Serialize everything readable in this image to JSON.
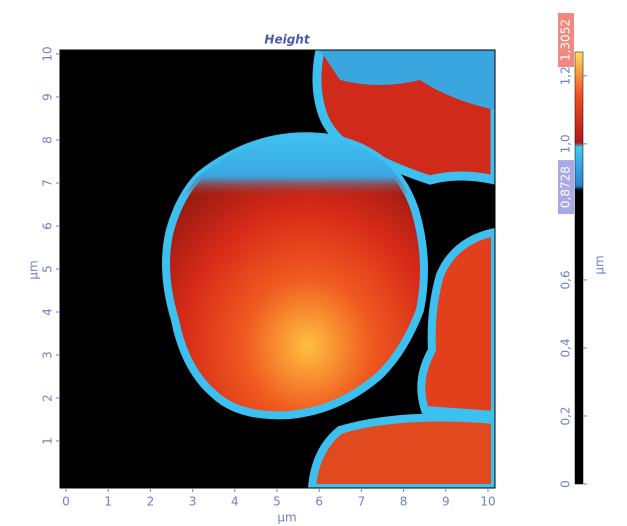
{
  "chart_data": {
    "type": "heatmap",
    "title": "Height",
    "x_label": "µm",
    "y_label": "µm",
    "xlim": [
      0,
      10
    ],
    "ylim": [
      0,
      10
    ],
    "xticks": [
      0,
      1,
      2,
      3,
      4,
      5,
      6,
      7,
      8,
      9,
      10
    ],
    "yticks": [
      1,
      2,
      3,
      4,
      5,
      6,
      7,
      8,
      9,
      10
    ],
    "colorbar": {
      "label": "µm",
      "lim": [
        0,
        1.27
      ],
      "ticks": [
        {
          "value": 0,
          "label": "0"
        },
        {
          "value": 0.2,
          "label": "0,2"
        },
        {
          "value": 0.4,
          "label": "0,4"
        },
        {
          "value": 0.6,
          "label": "0,6"
        },
        {
          "value": 1.0,
          "label": "1,0"
        },
        {
          "value": 1.2,
          "label": "1,2"
        }
      ],
      "markers": [
        {
          "value": 1.3052,
          "label": "1,3052",
          "color": "#f08a80"
        },
        {
          "value": 0.8728,
          "label": "0,8728",
          "color": "#a9a9e8"
        }
      ]
    }
  }
}
